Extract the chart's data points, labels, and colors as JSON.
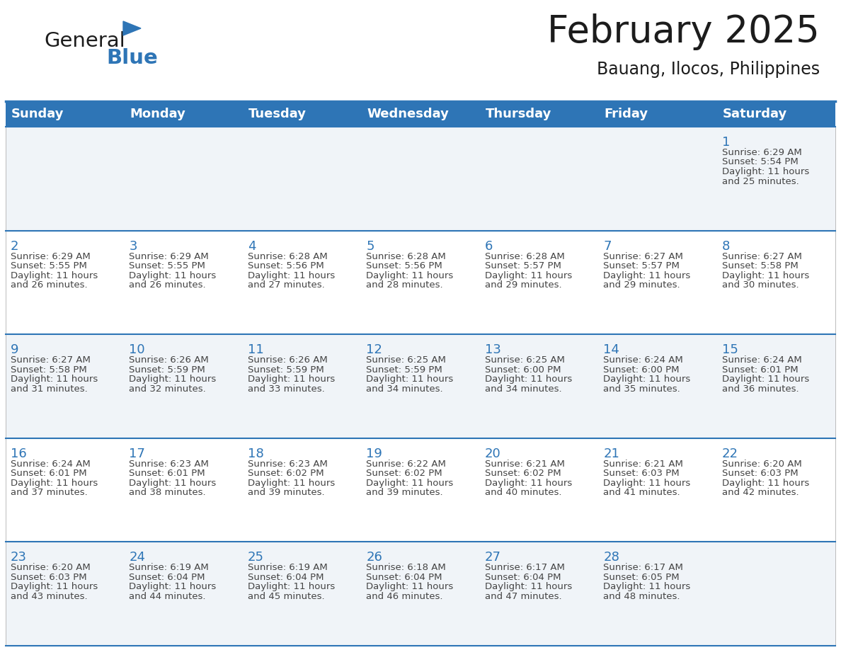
{
  "title": "February 2025",
  "subtitle": "Bauang, Ilocos, Philippines",
  "days_of_week": [
    "Sunday",
    "Monday",
    "Tuesday",
    "Wednesday",
    "Thursday",
    "Friday",
    "Saturday"
  ],
  "header_bg": "#2E75B6",
  "header_text_color": "#FFFFFF",
  "cell_bg_light": "#F0F4F8",
  "cell_bg_white": "#FFFFFF",
  "separator_color": "#2E75B6",
  "day_number_color": "#2E75B6",
  "text_color": "#444444",
  "calendar_data": [
    [
      {
        "day": null,
        "sunrise": null,
        "sunset": null,
        "daylight_hours": null,
        "daylight_minutes": null
      },
      {
        "day": null,
        "sunrise": null,
        "sunset": null,
        "daylight_hours": null,
        "daylight_minutes": null
      },
      {
        "day": null,
        "sunrise": null,
        "sunset": null,
        "daylight_hours": null,
        "daylight_minutes": null
      },
      {
        "day": null,
        "sunrise": null,
        "sunset": null,
        "daylight_hours": null,
        "daylight_minutes": null
      },
      {
        "day": null,
        "sunrise": null,
        "sunset": null,
        "daylight_hours": null,
        "daylight_minutes": null
      },
      {
        "day": null,
        "sunrise": null,
        "sunset": null,
        "daylight_hours": null,
        "daylight_minutes": null
      },
      {
        "day": 1,
        "sunrise": "6:29 AM",
        "sunset": "5:54 PM",
        "daylight_hours": 11,
        "daylight_minutes": 25
      }
    ],
    [
      {
        "day": 2,
        "sunrise": "6:29 AM",
        "sunset": "5:55 PM",
        "daylight_hours": 11,
        "daylight_minutes": 26
      },
      {
        "day": 3,
        "sunrise": "6:29 AM",
        "sunset": "5:55 PM",
        "daylight_hours": 11,
        "daylight_minutes": 26
      },
      {
        "day": 4,
        "sunrise": "6:28 AM",
        "sunset": "5:56 PM",
        "daylight_hours": 11,
        "daylight_minutes": 27
      },
      {
        "day": 5,
        "sunrise": "6:28 AM",
        "sunset": "5:56 PM",
        "daylight_hours": 11,
        "daylight_minutes": 28
      },
      {
        "day": 6,
        "sunrise": "6:28 AM",
        "sunset": "5:57 PM",
        "daylight_hours": 11,
        "daylight_minutes": 29
      },
      {
        "day": 7,
        "sunrise": "6:27 AM",
        "sunset": "5:57 PM",
        "daylight_hours": 11,
        "daylight_minutes": 29
      },
      {
        "day": 8,
        "sunrise": "6:27 AM",
        "sunset": "5:58 PM",
        "daylight_hours": 11,
        "daylight_minutes": 30
      }
    ],
    [
      {
        "day": 9,
        "sunrise": "6:27 AM",
        "sunset": "5:58 PM",
        "daylight_hours": 11,
        "daylight_minutes": 31
      },
      {
        "day": 10,
        "sunrise": "6:26 AM",
        "sunset": "5:59 PM",
        "daylight_hours": 11,
        "daylight_minutes": 32
      },
      {
        "day": 11,
        "sunrise": "6:26 AM",
        "sunset": "5:59 PM",
        "daylight_hours": 11,
        "daylight_minutes": 33
      },
      {
        "day": 12,
        "sunrise": "6:25 AM",
        "sunset": "5:59 PM",
        "daylight_hours": 11,
        "daylight_minutes": 34
      },
      {
        "day": 13,
        "sunrise": "6:25 AM",
        "sunset": "6:00 PM",
        "daylight_hours": 11,
        "daylight_minutes": 34
      },
      {
        "day": 14,
        "sunrise": "6:24 AM",
        "sunset": "6:00 PM",
        "daylight_hours": 11,
        "daylight_minutes": 35
      },
      {
        "day": 15,
        "sunrise": "6:24 AM",
        "sunset": "6:01 PM",
        "daylight_hours": 11,
        "daylight_minutes": 36
      }
    ],
    [
      {
        "day": 16,
        "sunrise": "6:24 AM",
        "sunset": "6:01 PM",
        "daylight_hours": 11,
        "daylight_minutes": 37
      },
      {
        "day": 17,
        "sunrise": "6:23 AM",
        "sunset": "6:01 PM",
        "daylight_hours": 11,
        "daylight_minutes": 38
      },
      {
        "day": 18,
        "sunrise": "6:23 AM",
        "sunset": "6:02 PM",
        "daylight_hours": 11,
        "daylight_minutes": 39
      },
      {
        "day": 19,
        "sunrise": "6:22 AM",
        "sunset": "6:02 PM",
        "daylight_hours": 11,
        "daylight_minutes": 39
      },
      {
        "day": 20,
        "sunrise": "6:21 AM",
        "sunset": "6:02 PM",
        "daylight_hours": 11,
        "daylight_minutes": 40
      },
      {
        "day": 21,
        "sunrise": "6:21 AM",
        "sunset": "6:03 PM",
        "daylight_hours": 11,
        "daylight_minutes": 41
      },
      {
        "day": 22,
        "sunrise": "6:20 AM",
        "sunset": "6:03 PM",
        "daylight_hours": 11,
        "daylight_minutes": 42
      }
    ],
    [
      {
        "day": 23,
        "sunrise": "6:20 AM",
        "sunset": "6:03 PM",
        "daylight_hours": 11,
        "daylight_minutes": 43
      },
      {
        "day": 24,
        "sunrise": "6:19 AM",
        "sunset": "6:04 PM",
        "daylight_hours": 11,
        "daylight_minutes": 44
      },
      {
        "day": 25,
        "sunrise": "6:19 AM",
        "sunset": "6:04 PM",
        "daylight_hours": 11,
        "daylight_minutes": 45
      },
      {
        "day": 26,
        "sunrise": "6:18 AM",
        "sunset": "6:04 PM",
        "daylight_hours": 11,
        "daylight_minutes": 46
      },
      {
        "day": 27,
        "sunrise": "6:17 AM",
        "sunset": "6:04 PM",
        "daylight_hours": 11,
        "daylight_minutes": 47
      },
      {
        "day": 28,
        "sunrise": "6:17 AM",
        "sunset": "6:05 PM",
        "daylight_hours": 11,
        "daylight_minutes": 48
      },
      {
        "day": null,
        "sunrise": null,
        "sunset": null,
        "daylight_hours": null,
        "daylight_minutes": null
      }
    ]
  ]
}
